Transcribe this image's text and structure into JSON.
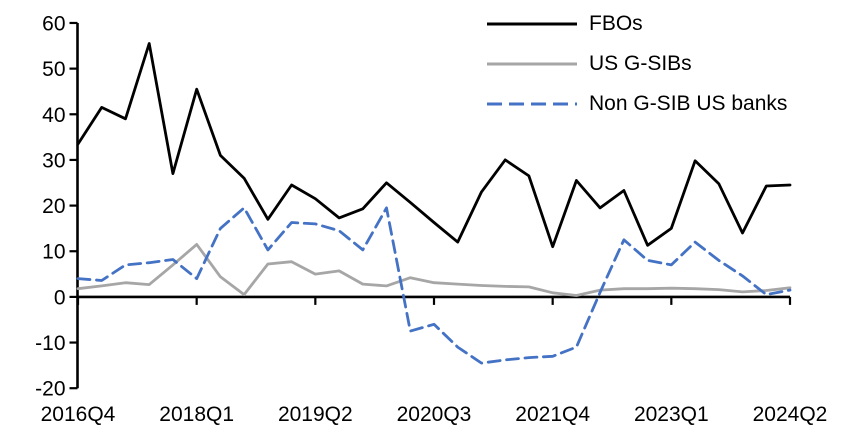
{
  "chart_data": {
    "type": "line",
    "title": "",
    "xlabel": "",
    "ylabel": "",
    "categories": [
      "2016Q4",
      "2017Q1",
      "2017Q2",
      "2017Q3",
      "2017Q4",
      "2018Q1",
      "2018Q2",
      "2018Q3",
      "2018Q4",
      "2019Q1",
      "2019Q2",
      "2019Q3",
      "2019Q4",
      "2020Q1",
      "2020Q2",
      "2020Q3",
      "2020Q4",
      "2021Q1",
      "2021Q2",
      "2021Q3",
      "2021Q4",
      "2022Q1",
      "2022Q2",
      "2022Q3",
      "2022Q4",
      "2023Q1",
      "2023Q2",
      "2023Q3",
      "2023Q4",
      "2024Q1",
      "2024Q2"
    ],
    "x_tick_labels": [
      "2016Q4",
      "2018Q1",
      "2019Q2",
      "2020Q3",
      "2021Q4",
      "2023Q1",
      "2024Q2"
    ],
    "x_tick_indices": [
      0,
      5,
      10,
      15,
      20,
      25,
      30
    ],
    "y_ticks": [
      60,
      50,
      40,
      30,
      20,
      10,
      0,
      -10,
      -20
    ],
    "ylim": [
      -20,
      60
    ],
    "grid": false,
    "legend_position": "top-right",
    "background": "#ffffff",
    "axis_color": "#000000",
    "series": [
      {
        "name": "FBOs",
        "color": "#000000",
        "dash": "solid",
        "values": [
          33.5,
          41.5,
          39,
          55.5,
          27,
          45.5,
          31,
          26,
          17,
          24.5,
          21.5,
          17.3,
          19.3,
          25,
          20.7,
          16.3,
          12,
          23,
          30,
          26.5,
          11,
          25.5,
          19.5,
          23.3,
          11.3,
          15,
          29.8,
          24.8,
          14,
          24.3,
          24.5
        ]
      },
      {
        "name": "US G-SIBs",
        "color": "#a6a6a6",
        "dash": "solid",
        "values": [
          1.8,
          2.4,
          3.1,
          2.7,
          7,
          11.5,
          4.4,
          0.5,
          7.2,
          7.7,
          5,
          5.7,
          2.8,
          2.4,
          4.2,
          3.1,
          2.8,
          2.5,
          2.3,
          2.2,
          0.9,
          0.3,
          1.5,
          1.8,
          1.8,
          1.9,
          1.8,
          1.6,
          1.1,
          1.4,
          2
        ]
      },
      {
        "name": "Non G-SIB US banks",
        "color": "#4472c4",
        "dash": "dashed",
        "values": [
          4,
          3.6,
          7,
          7.5,
          8.2,
          4,
          15,
          19.5,
          10.3,
          16.3,
          16,
          14.5,
          10.3,
          19.5,
          -7.5,
          -6,
          -11,
          -14.5,
          -13.8,
          -13.3,
          -13,
          -11,
          1,
          12.5,
          8,
          7,
          12,
          8,
          4.6,
          0.5,
          1.5
        ]
      }
    ]
  }
}
